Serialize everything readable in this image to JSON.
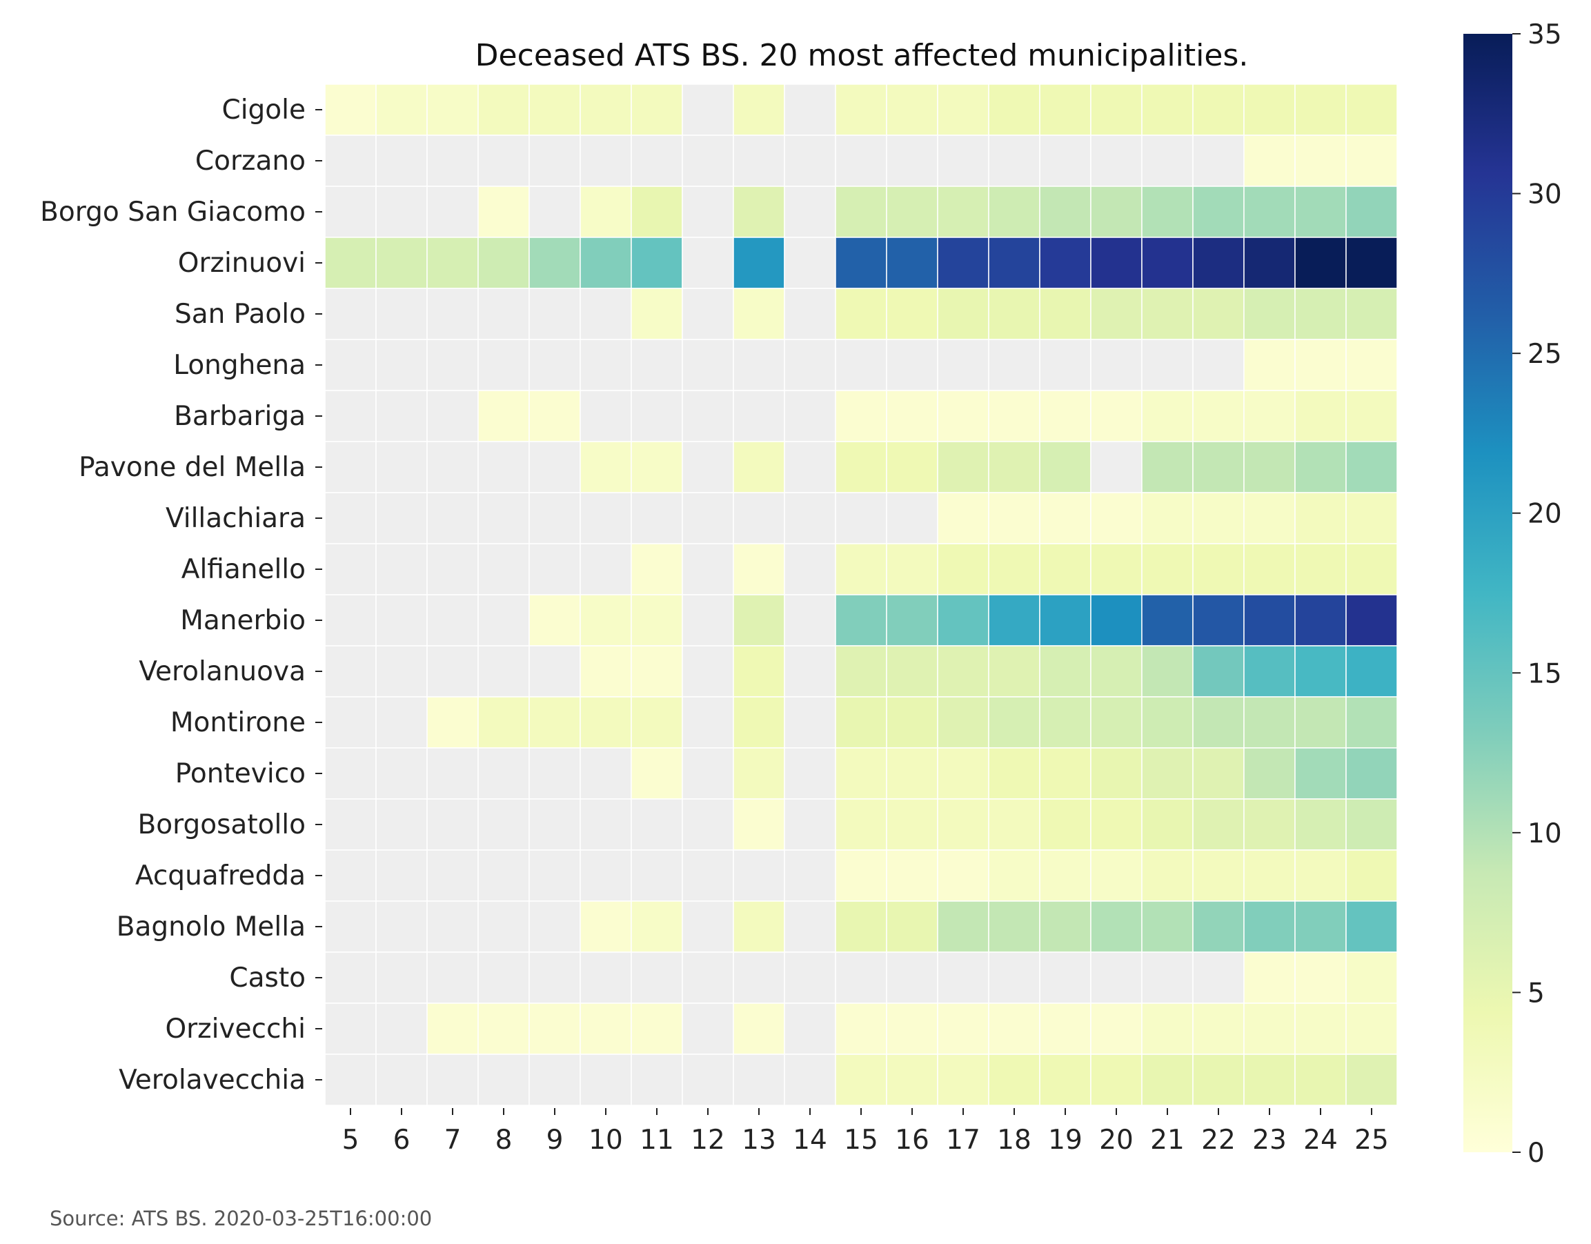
{
  "chart_data": {
    "type": "heatmap",
    "title": "Deceased ATS BS. 20 most affected municipalities.",
    "xlabel": "",
    "ylabel": "",
    "x": [
      5,
      6,
      7,
      8,
      9,
      10,
      11,
      12,
      13,
      14,
      15,
      16,
      17,
      18,
      19,
      20,
      21,
      22,
      23,
      24,
      25
    ],
    "rows": [
      "Cigole",
      "Corzano",
      "Borgo San Giacomo",
      "Orzinuovi",
      "San Paolo",
      "Longhena",
      "Barbariga",
      "Pavone del Mella",
      "Villachiara",
      "Alfianello",
      "Manerbio",
      "Verolanuova",
      "Montirone",
      "Pontevico",
      "Borgosatollo",
      "Acquafredda",
      "Bagnolo Mella",
      "Casto",
      "Orzivecchi",
      "Verolavecchia"
    ],
    "values": [
      [
        1,
        2,
        2,
        3,
        3,
        3,
        3,
        null,
        3,
        null,
        3,
        3,
        3,
        4,
        4,
        4,
        4,
        4,
        4,
        4,
        4
      ],
      [
        null,
        null,
        null,
        null,
        null,
        null,
        null,
        null,
        null,
        null,
        null,
        null,
        null,
        null,
        null,
        null,
        null,
        null,
        1,
        1,
        1
      ],
      [
        null,
        null,
        null,
        1,
        null,
        2,
        5,
        null,
        6,
        null,
        7,
        7,
        7,
        8,
        9,
        9,
        10,
        11,
        11,
        11,
        12
      ],
      [
        7,
        7,
        7,
        8,
        11,
        13,
        15,
        null,
        21,
        null,
        26,
        26,
        29,
        29,
        30,
        31,
        31,
        32,
        33,
        35,
        36
      ],
      [
        null,
        null,
        null,
        null,
        null,
        null,
        2,
        null,
        2,
        null,
        4,
        4,
        5,
        5,
        5,
        6,
        6,
        6,
        7,
        7,
        7
      ],
      [
        null,
        null,
        null,
        null,
        null,
        null,
        null,
        null,
        null,
        null,
        null,
        null,
        null,
        null,
        null,
        null,
        null,
        null,
        1,
        1,
        1
      ],
      [
        null,
        null,
        null,
        1,
        1,
        null,
        null,
        null,
        null,
        null,
        1,
        1,
        1,
        1,
        1,
        1,
        2,
        2,
        2,
        3,
        3
      ],
      [
        null,
        null,
        null,
        null,
        null,
        2,
        2,
        null,
        3,
        null,
        4,
        4,
        6,
        6,
        7,
        null,
        9,
        9,
        9,
        10,
        11
      ],
      [
        null,
        null,
        null,
        null,
        null,
        null,
        null,
        null,
        null,
        null,
        null,
        null,
        1,
        1,
        1,
        1,
        2,
        2,
        2,
        3,
        3
      ],
      [
        null,
        null,
        null,
        null,
        null,
        null,
        1,
        null,
        1,
        null,
        3,
        3,
        4,
        4,
        4,
        4,
        4,
        4,
        4,
        4,
        4
      ],
      [
        null,
        null,
        null,
        null,
        1,
        2,
        2,
        null,
        6,
        null,
        13,
        13,
        15,
        19,
        20,
        22,
        26,
        27,
        28,
        29,
        31
      ],
      [
        null,
        null,
        null,
        null,
        null,
        1,
        1,
        null,
        4,
        null,
        6,
        6,
        6,
        6,
        7,
        7,
        9,
        14,
        16,
        17,
        18
      ],
      [
        null,
        null,
        1,
        3,
        3,
        3,
        3,
        null,
        4,
        null,
        5,
        5,
        6,
        7,
        7,
        7,
        8,
        9,
        9,
        9,
        10
      ],
      [
        null,
        null,
        null,
        null,
        null,
        null,
        1,
        null,
        3,
        null,
        3,
        3,
        3,
        4,
        4,
        5,
        6,
        6,
        9,
        11,
        12
      ],
      [
        null,
        null,
        null,
        null,
        null,
        null,
        null,
        null,
        1,
        null,
        3,
        3,
        3,
        3,
        4,
        4,
        5,
        6,
        6,
        7,
        8
      ],
      [
        null,
        null,
        null,
        null,
        null,
        null,
        null,
        null,
        null,
        null,
        1,
        1,
        1,
        2,
        2,
        2,
        3,
        3,
        3,
        3,
        4
      ],
      [
        null,
        null,
        null,
        null,
        null,
        1,
        2,
        null,
        3,
        null,
        5,
        5,
        9,
        9,
        9,
        10,
        10,
        12,
        13,
        13,
        15
      ],
      [
        null,
        null,
        null,
        null,
        null,
        null,
        null,
        null,
        null,
        null,
        null,
        null,
        null,
        null,
        null,
        null,
        null,
        null,
        1,
        1,
        2
      ],
      [
        null,
        null,
        1,
        1,
        1,
        1,
        1,
        null,
        1,
        null,
        1,
        1,
        1,
        1,
        1,
        1,
        2,
        2,
        2,
        2,
        2
      ],
      [
        null,
        null,
        null,
        null,
        null,
        null,
        null,
        null,
        null,
        null,
        3,
        3,
        3,
        4,
        4,
        4,
        5,
        5,
        5,
        5,
        6
      ]
    ],
    "missing_color": "#eeeeee",
    "colormap": "YlGnBu",
    "colorbar": {
      "min": 0,
      "max": 35,
      "ticks": [
        0,
        5,
        10,
        15,
        20,
        25,
        30,
        35
      ]
    },
    "grid": false,
    "legend": "colorbar-right"
  },
  "footer": {
    "source": "Source: ATS BS. 2020-03-25T16:00:00"
  }
}
